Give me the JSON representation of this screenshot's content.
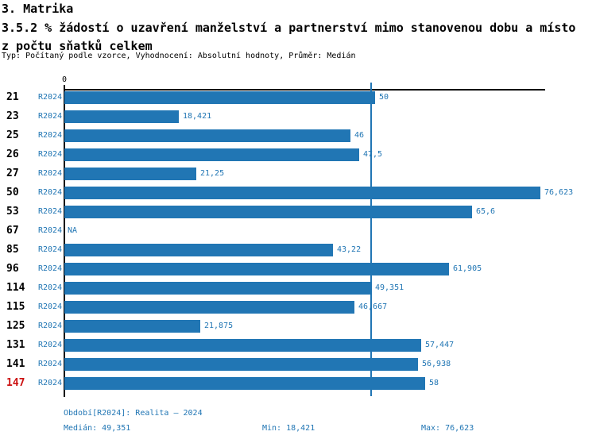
{
  "header": {
    "section_title": "3. Matrika",
    "indicator_title": "3.5.2 % žádostí o uzavření manželství a partnerství mimo stanovenou dobu a místo z počtu sňatků celkem",
    "meta_line": "Typ: Počítaný podle vzorce, Vyhodnocení: Absolutní hodnoty, Průměr: Medián"
  },
  "chart_data": {
    "type": "bar",
    "orientation": "horizontal",
    "x_axis": {
      "zero_label": "0",
      "min": 0,
      "max": 77.5,
      "gridlines": false
    },
    "series_label": "R2024",
    "rows": [
      {
        "id": "21",
        "series": "R2024",
        "value": 50,
        "label": "50"
      },
      {
        "id": "23",
        "series": "R2024",
        "value": 18.421,
        "label": "18,421"
      },
      {
        "id": "25",
        "series": "R2024",
        "value": 46,
        "label": "46"
      },
      {
        "id": "26",
        "series": "R2024",
        "value": 47.5,
        "label": "47,5"
      },
      {
        "id": "27",
        "series": "R2024",
        "value": 21.25,
        "label": "21,25"
      },
      {
        "id": "50",
        "series": "R2024",
        "value": 76.623,
        "label": "76,623"
      },
      {
        "id": "53",
        "series": "R2024",
        "value": 65.6,
        "label": "65,6"
      },
      {
        "id": "67",
        "series": "R2024",
        "value": null,
        "label": "NA"
      },
      {
        "id": "85",
        "series": "R2024",
        "value": 43.22,
        "label": "43,22"
      },
      {
        "id": "96",
        "series": "R2024",
        "value": 61.905,
        "label": "61,905"
      },
      {
        "id": "114",
        "series": "R2024",
        "value": 49.351,
        "label": "49,351"
      },
      {
        "id": "115",
        "series": "R2024",
        "value": 46.667,
        "label": "46,667"
      },
      {
        "id": "125",
        "series": "R2024",
        "value": 21.875,
        "label": "21,875"
      },
      {
        "id": "131",
        "series": "R2024",
        "value": 57.447,
        "label": "57,447"
      },
      {
        "id": "141",
        "series": "R2024",
        "value": 56.938,
        "label": "56,938"
      },
      {
        "id": "147",
        "series": "R2024",
        "value": 58,
        "label": "58",
        "highlighted": true
      }
    ],
    "median_line_value": 49.351,
    "colors": {
      "bar": "#2176B4",
      "accent_text": "#2176B4",
      "highlight_id": "#CC1111",
      "axis": "#000000"
    }
  },
  "footer": {
    "period_label": "Období[R2024]: Realita – 2024",
    "median_label": "Medián: 49,351",
    "min_label": "Min: 18,421",
    "max_label": "Max: 76,623"
  }
}
